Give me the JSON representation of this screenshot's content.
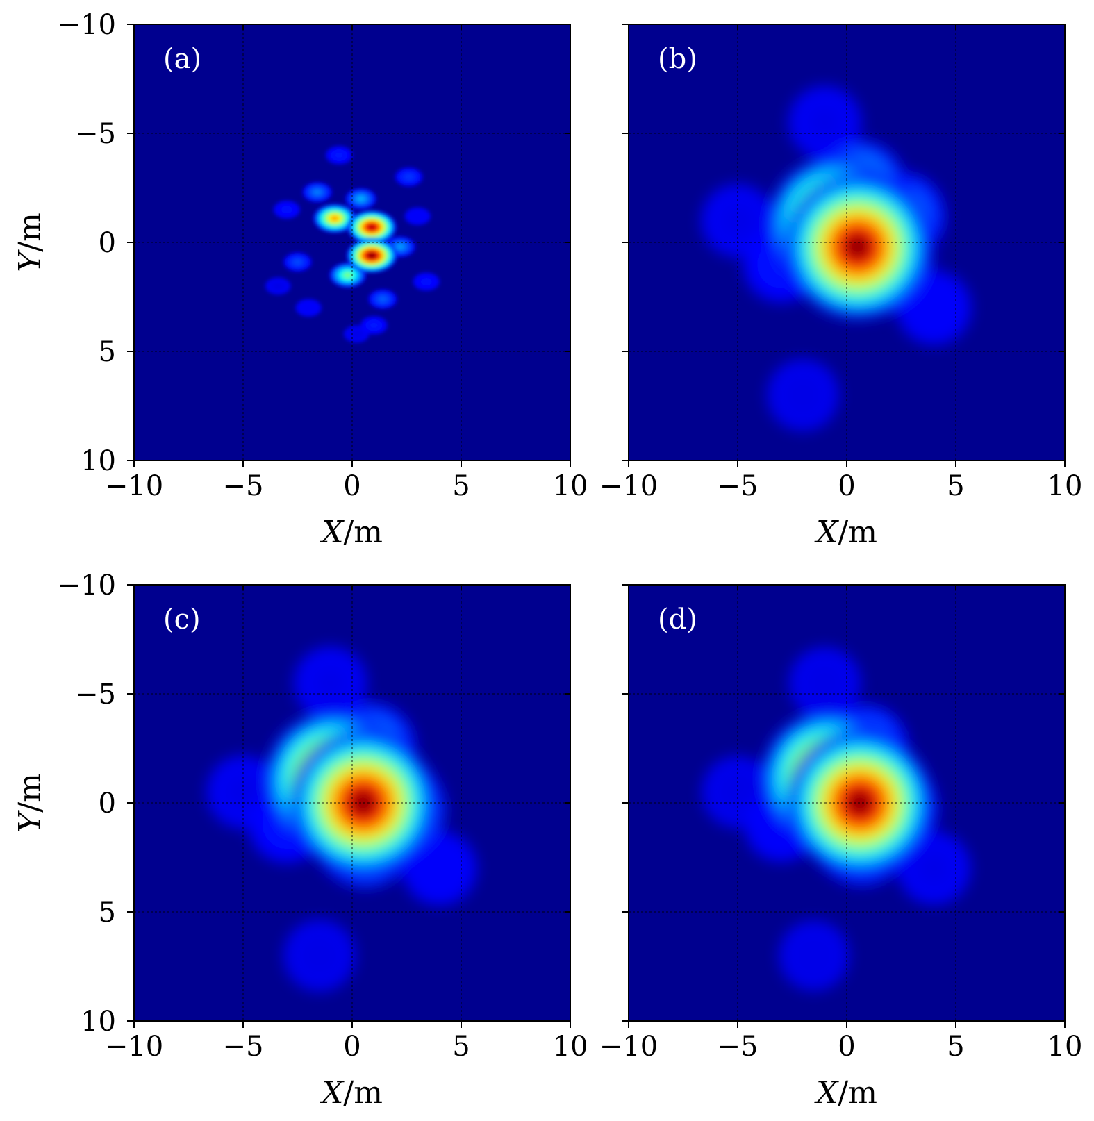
{
  "chart_data": [
    {
      "type": "heatmap",
      "panel_label": "(a)",
      "xlabel": "X/m",
      "ylabel": "Y/m",
      "xlim": [
        -10,
        10
      ],
      "ylim": [
        -10,
        10
      ],
      "y_inverted": true,
      "xticks": [
        -10,
        -5,
        0,
        5,
        10
      ],
      "yticks": [
        -10,
        -5,
        0,
        5,
        10
      ],
      "grid": true,
      "colormap": "jet",
      "background_color": "#00008f",
      "peaks": [
        {
          "x": 0.9,
          "y": 0.6,
          "intensity": 1.0
        },
        {
          "x": 0.9,
          "y": -0.7,
          "intensity": 0.95
        },
        {
          "x": -0.8,
          "y": -1.1,
          "intensity": 0.72
        },
        {
          "x": -0.2,
          "y": 1.5,
          "intensity": 0.5
        },
        {
          "x": 0.4,
          "y": -2.0,
          "intensity": 0.3
        },
        {
          "x": 2.2,
          "y": 0.2,
          "intensity": 0.28
        },
        {
          "x": -1.6,
          "y": -2.3,
          "intensity": 0.25
        },
        {
          "x": 1.4,
          "y": 2.6,
          "intensity": 0.22
        },
        {
          "x": -2.5,
          "y": 0.9,
          "intensity": 0.2
        },
        {
          "x": 2.6,
          "y": -3.0,
          "intensity": 0.18
        },
        {
          "x": -0.6,
          "y": -4.0,
          "intensity": 0.15
        },
        {
          "x": 1.0,
          "y": 3.8,
          "intensity": 0.15
        },
        {
          "x": -3.0,
          "y": -1.5,
          "intensity": 0.14
        },
        {
          "x": 3.4,
          "y": 1.8,
          "intensity": 0.14
        },
        {
          "x": -2.0,
          "y": 3.0,
          "intensity": 0.12
        },
        {
          "x": 3.0,
          "y": -1.2,
          "intensity": 0.12
        },
        {
          "x": 0.2,
          "y": 4.2,
          "intensity": 0.1
        },
        {
          "x": -3.4,
          "y": 2.0,
          "intensity": 0.1
        }
      ]
    },
    {
      "type": "heatmap",
      "panel_label": "(b)",
      "xlabel": "X/m",
      "ylabel": "",
      "xlim": [
        -10,
        10
      ],
      "ylim": [
        -10,
        10
      ],
      "y_inverted": true,
      "xticks": [
        -10,
        -5,
        0,
        5,
        10
      ],
      "yticks": [
        -10,
        -5,
        0,
        5,
        10
      ],
      "grid": true,
      "colormap": "jet",
      "background_color": "#00008f",
      "peaks": [
        {
          "x": 0.5,
          "y": 0.2,
          "intensity": 1.0
        },
        {
          "x": -0.5,
          "y": -0.8,
          "intensity": 0.9
        },
        {
          "x": 1.5,
          "y": 0.8,
          "intensity": 0.55
        },
        {
          "x": 0.5,
          "y": -2.5,
          "intensity": 0.4
        },
        {
          "x": 2.5,
          "y": -1.2,
          "intensity": 0.3
        },
        {
          "x": -3.0,
          "y": 1.0,
          "intensity": 0.15
        },
        {
          "x": -5.0,
          "y": -1.0,
          "intensity": 0.1
        },
        {
          "x": 4.0,
          "y": 3.0,
          "intensity": 0.12
        },
        {
          "x": -2.0,
          "y": 7.0,
          "intensity": 0.08
        },
        {
          "x": -1.0,
          "y": -5.5,
          "intensity": 0.1
        }
      ]
    },
    {
      "type": "heatmap",
      "panel_label": "(c)",
      "xlabel": "X/m",
      "ylabel": "Y/m",
      "xlim": [
        -10,
        10
      ],
      "ylim": [
        -10,
        10
      ],
      "y_inverted": true,
      "xticks": [
        -10,
        -5,
        0,
        5,
        10
      ],
      "yticks": [
        -10,
        -5,
        0,
        5,
        10
      ],
      "grid": true,
      "colormap": "jet",
      "background_color": "#00008f",
      "peaks": [
        {
          "x": 0.5,
          "y": 0.0,
          "intensity": 1.0
        },
        {
          "x": -0.8,
          "y": -1.0,
          "intensity": 0.95
        },
        {
          "x": 1.8,
          "y": 0.3,
          "intensity": 0.55
        },
        {
          "x": 0.6,
          "y": 1.5,
          "intensity": 0.5
        },
        {
          "x": 0.8,
          "y": -2.5,
          "intensity": 0.35
        },
        {
          "x": -3.0,
          "y": 1.0,
          "intensity": 0.15
        },
        {
          "x": -5.0,
          "y": -0.5,
          "intensity": 0.1
        },
        {
          "x": 4.0,
          "y": 3.0,
          "intensity": 0.12
        },
        {
          "x": -1.5,
          "y": 7.0,
          "intensity": 0.08
        },
        {
          "x": -1.0,
          "y": -5.5,
          "intensity": 0.1
        }
      ]
    },
    {
      "type": "heatmap",
      "panel_label": "(d)",
      "xlabel": "X/m",
      "ylabel": "",
      "xlim": [
        -10,
        10
      ],
      "ylim": [
        -10,
        10
      ],
      "y_inverted": true,
      "xticks": [
        -10,
        -5,
        0,
        5,
        10
      ],
      "yticks": [
        -10,
        -5,
        0,
        5,
        10
      ],
      "grid": true,
      "colormap": "jet",
      "background_color": "#00008f",
      "peaks": [
        {
          "x": 0.6,
          "y": 0.0,
          "intensity": 1.0
        },
        {
          "x": -0.8,
          "y": -1.1,
          "intensity": 0.9
        },
        {
          "x": 1.8,
          "y": 0.3,
          "intensity": 0.5
        },
        {
          "x": 0.7,
          "y": 1.5,
          "intensity": 0.45
        },
        {
          "x": 0.8,
          "y": -2.5,
          "intensity": 0.3
        },
        {
          "x": -3.0,
          "y": 1.0,
          "intensity": 0.12
        },
        {
          "x": -5.0,
          "y": -0.5,
          "intensity": 0.08
        },
        {
          "x": 4.0,
          "y": 3.0,
          "intensity": 0.1
        },
        {
          "x": -1.5,
          "y": 7.0,
          "intensity": 0.06
        },
        {
          "x": -1.0,
          "y": -5.5,
          "intensity": 0.08
        }
      ]
    }
  ]
}
